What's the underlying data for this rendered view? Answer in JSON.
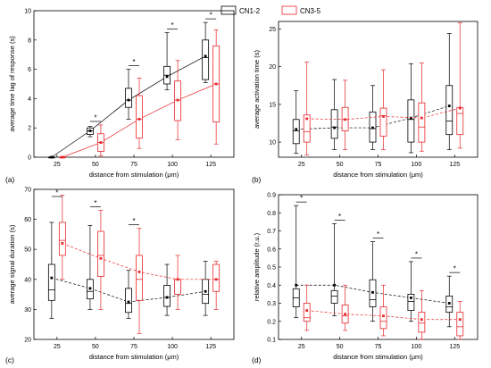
{
  "legend": {
    "entries": [
      {
        "label": "CN1-2",
        "color": "#000000"
      },
      {
        "label": "CN3-5",
        "color": "#e8262b"
      }
    ]
  },
  "chart_data": [
    {
      "type": "box",
      "panel_label": "(a)",
      "xlabel": "distance from stimulation (μm)",
      "ylabel": "average time lag of response (s)",
      "categories": [
        "25",
        "50",
        "75",
        "100",
        "125"
      ],
      "ylim": [
        0,
        10
      ],
      "yticks": [
        "0",
        "2",
        "4",
        "6",
        "8",
        "10"
      ],
      "trend_lines": "solid",
      "significance": [
        false,
        true,
        true,
        true,
        true
      ],
      "series": [
        {
          "name": "CN1-2",
          "color": "#000000",
          "boxes": [
            {
              "min": 0,
              "q1": 0,
              "median": 0,
              "q3": 0,
              "max": 0.05,
              "mean": 0
            },
            {
              "min": 1.4,
              "q1": 1.55,
              "median": 1.8,
              "q3": 2.0,
              "max": 2.1,
              "mean": 1.8
            },
            {
              "min": 2.6,
              "q1": 3.4,
              "median": 3.9,
              "q3": 4.7,
              "max": 6.0,
              "mean": 3.9
            },
            {
              "min": 4.6,
              "q1": 5.0,
              "median": 5.6,
              "q3": 6.2,
              "max": 8.5,
              "mean": 5.5
            },
            {
              "min": 5.1,
              "q1": 5.3,
              "median": 6.8,
              "q3": 8.0,
              "max": 9.2,
              "mean": 6.9
            }
          ]
        },
        {
          "name": "CN3-5",
          "color": "#e8262b",
          "boxes": [
            {
              "min": 0,
              "q1": 0,
              "median": 0,
              "q3": 0,
              "max": 0.05,
              "mean": 0
            },
            {
              "min": 0.1,
              "q1": 0.4,
              "median": 1.0,
              "q3": 1.6,
              "max": 2.2,
              "mean": 1.0
            },
            {
              "min": 0.6,
              "q1": 1.3,
              "median": 2.6,
              "q3": 4.2,
              "max": 5.4,
              "mean": 2.6
            },
            {
              "min": 1.2,
              "q1": 2.5,
              "median": 3.9,
              "q3": 5.2,
              "max": 6.6,
              "mean": 3.9
            },
            {
              "min": 0.9,
              "q1": 2.4,
              "median": 5.0,
              "q3": 7.6,
              "max": 8.7,
              "mean": 5.0
            }
          ]
        }
      ]
    },
    {
      "type": "box",
      "panel_label": "(b)",
      "xlabel": "distance from stimulation (μm)",
      "ylabel": "average activation time (s)",
      "categories": [
        "25",
        "50",
        "75",
        "100",
        "125"
      ],
      "ylim": [
        8,
        26
      ],
      "yticks": [
        "10",
        "15",
        "20",
        "25"
      ],
      "trend_lines": "dashed",
      "significance": [
        false,
        false,
        false,
        false,
        false
      ],
      "series": [
        {
          "name": "CN1-2",
          "color": "#000000",
          "boxes": [
            {
              "min": 8.5,
              "q1": 9.8,
              "median": 11.5,
              "q3": 13.0,
              "max": 16.8,
              "mean": 11.7
            },
            {
              "min": 9.0,
              "q1": 10.5,
              "median": 12.0,
              "q3": 14.3,
              "max": 18.3,
              "mean": 11.9
            },
            {
              "min": 9.0,
              "q1": 10.0,
              "median": 11.8,
              "q3": 14.0,
              "max": 17.5,
              "mean": 11.9
            },
            {
              "min": 8.6,
              "q1": 10.0,
              "median": 13.0,
              "q3": 15.6,
              "max": 20.4,
              "mean": 13.2
            },
            {
              "min": 9.0,
              "q1": 11.0,
              "median": 12.8,
              "q3": 17.5,
              "max": 24.4,
              "mean": 14.8
            }
          ]
        },
        {
          "name": "CN3-5",
          "color": "#e8262b",
          "boxes": [
            {
              "min": 8.3,
              "q1": 10.0,
              "median": 11.4,
              "q3": 13.6,
              "max": 20.6,
              "mean": 13.1
            },
            {
              "min": 9.0,
              "q1": 11.5,
              "median": 13.0,
              "q3": 14.6,
              "max": 18.2,
              "mean": 13.0
            },
            {
              "min": 9.0,
              "q1": 10.8,
              "median": 13.5,
              "q3": 14.5,
              "max": 19.6,
              "mean": 13.4
            },
            {
              "min": 8.8,
              "q1": 10.0,
              "median": 12.0,
              "q3": 15.2,
              "max": 20.5,
              "mean": 13.2
            },
            {
              "min": 9.2,
              "q1": 11.0,
              "median": 13.8,
              "q3": 14.6,
              "max": 25.8,
              "mean": 14.5
            }
          ]
        }
      ]
    },
    {
      "type": "box",
      "panel_label": "(c)",
      "xlabel": "distance from stimulation (μm)",
      "ylabel": "average signal duration (s)",
      "categories": [
        "25",
        "50",
        "75",
        "100",
        "125"
      ],
      "ylim": [
        20,
        70
      ],
      "yticks": [
        "20",
        "30",
        "40",
        "50",
        "60",
        "70"
      ],
      "trend_lines": "dashed",
      "significance": [
        true,
        true,
        true,
        false,
        false
      ],
      "series": [
        {
          "name": "CN1-2",
          "color": "#000000",
          "boxes": [
            {
              "min": 27,
              "q1": 33,
              "median": 36.5,
              "q3": 45,
              "max": 59,
              "mean": 40.5
            },
            {
              "min": 30,
              "q1": 33.5,
              "median": 36,
              "q3": 40,
              "max": 58,
              "mean": 37
            },
            {
              "min": 27,
              "q1": 29,
              "median": 32,
              "q3": 37,
              "max": 43,
              "mean": 32.5
            },
            {
              "min": 28,
              "q1": 31,
              "median": 34,
              "q3": 38,
              "max": 45,
              "mean": 34
            },
            {
              "min": 28,
              "q1": 32,
              "median": 35,
              "q3": 40,
              "max": 46,
              "mean": 36
            }
          ]
        },
        {
          "name": "CN3-5",
          "color": "#e8262b",
          "boxes": [
            {
              "min": 40,
              "q1": 48,
              "median": 53,
              "q3": 59,
              "max": 68,
              "mean": 52
            },
            {
              "min": 30,
              "q1": 41,
              "median": 48,
              "q3": 56,
              "max": 63,
              "mean": 47
            },
            {
              "min": 22,
              "q1": 33,
              "median": 40,
              "q3": 48,
              "max": 57,
              "mean": 42.5
            },
            {
              "min": 30,
              "q1": 35,
              "median": 40,
              "q3": 40,
              "max": 48,
              "mean": 40
            },
            {
              "min": 30,
              "q1": 36,
              "median": 40,
              "q3": 45,
              "max": 46,
              "mean": 40
            }
          ]
        }
      ]
    },
    {
      "type": "box",
      "panel_label": "(d)",
      "xlabel": "distance from stimulation (μm)",
      "ylabel": "relative amplitude (r.u.)",
      "categories": [
        "25",
        "50",
        "75",
        "100",
        "125"
      ],
      "ylim": [
        0.1,
        0.9
      ],
      "yticks": [
        "0.1",
        "0.2",
        "0.3",
        "0.4",
        "0.5",
        "0.6",
        "0.7",
        "0.8",
        "0.9"
      ],
      "trend_lines": "dashed",
      "significance": [
        true,
        true,
        true,
        true,
        true
      ],
      "series": [
        {
          "name": "CN1-2",
          "color": "#000000",
          "boxes": [
            {
              "min": 0.22,
              "q1": 0.28,
              "median": 0.33,
              "q3": 0.38,
              "max": 0.84,
              "mean": 0.4
            },
            {
              "min": 0.23,
              "q1": 0.3,
              "median": 0.34,
              "q3": 0.37,
              "max": 0.74,
              "mean": 0.4
            },
            {
              "min": 0.2,
              "q1": 0.28,
              "median": 0.32,
              "q3": 0.43,
              "max": 0.64,
              "mean": 0.36
            },
            {
              "min": 0.2,
              "q1": 0.26,
              "median": 0.31,
              "q3": 0.35,
              "max": 0.53,
              "mean": 0.33
            },
            {
              "min": 0.17,
              "q1": 0.25,
              "median": 0.28,
              "q3": 0.34,
              "max": 0.45,
              "mean": 0.3
            }
          ]
        },
        {
          "name": "CN3-5",
          "color": "#e8262b",
          "boxes": [
            {
              "min": 0.15,
              "q1": 0.2,
              "median": 0.22,
              "q3": 0.3,
              "max": 0.4,
              "mean": 0.26
            },
            {
              "min": 0.15,
              "q1": 0.19,
              "median": 0.23,
              "q3": 0.29,
              "max": 0.4,
              "mean": 0.24
            },
            {
              "min": 0.12,
              "q1": 0.16,
              "median": 0.2,
              "q3": 0.28,
              "max": 0.4,
              "mean": 0.23
            },
            {
              "min": 0.1,
              "q1": 0.14,
              "median": 0.19,
              "q3": 0.25,
              "max": 0.37,
              "mean": 0.21
            },
            {
              "min": 0.1,
              "q1": 0.12,
              "median": 0.17,
              "q3": 0.25,
              "max": 0.31,
              "mean": 0.21
            }
          ]
        }
      ]
    }
  ]
}
